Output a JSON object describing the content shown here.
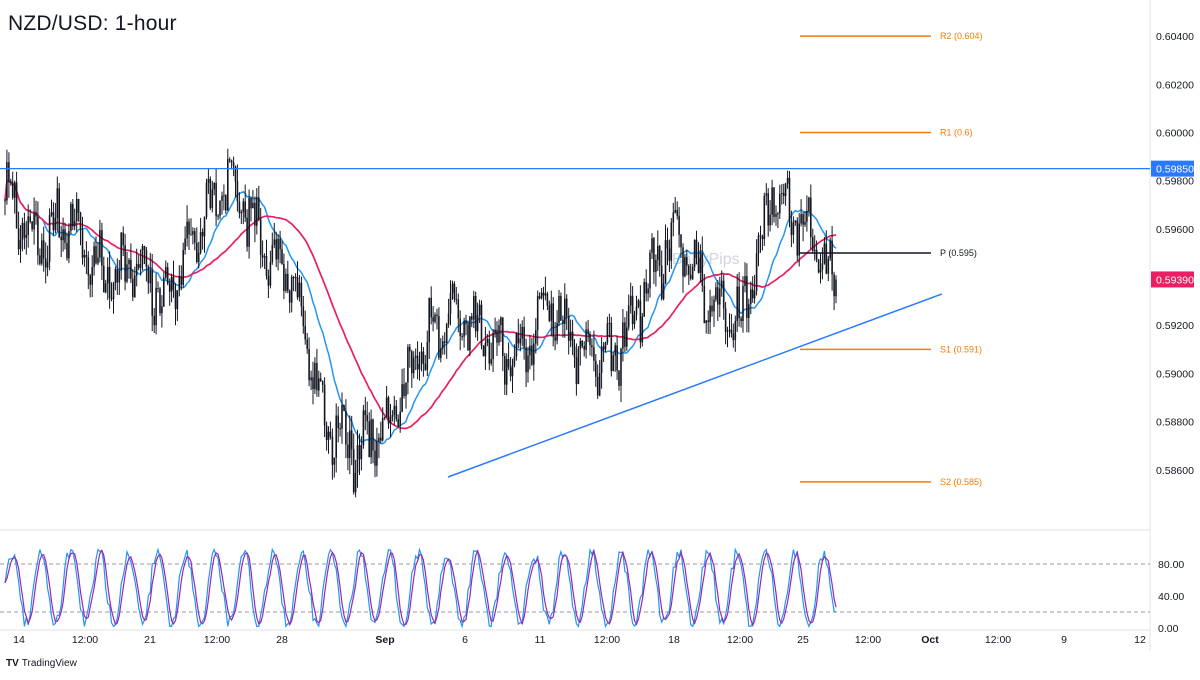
{
  "title": "NZD/USD: 1-hour",
  "watermark": "BabyPips",
  "footer": {
    "logo": "TV",
    "brand": "TradingView"
  },
  "colors": {
    "candle": "#131722",
    "ma_fast": "#2196f3",
    "ma_slow": "#e91e63",
    "resistance": "#2979ff",
    "trendline": "#2979ff",
    "pivot_resistance": "#f57c00",
    "pivot_support": "#f57c00",
    "pivot": "#131722",
    "stoch_k": "#2196f3",
    "stoch_d": "#9c27b0",
    "price_tag": "#e91e63"
  },
  "chart_data": {
    "type": "candlestick",
    "price_axis": {
      "ylim": [
        0.5835,
        0.6055
      ],
      "ticks": [
        "0.60400",
        "0.60200",
        "0.60000",
        "0.59800",
        "0.59600",
        "0.59200",
        "0.59000",
        "0.58800",
        "0.58600"
      ],
      "tick_values": [
        0.604,
        0.602,
        0.6,
        0.598,
        0.596,
        0.592,
        0.59,
        0.588,
        0.586
      ]
    },
    "time_axis": {
      "labels": [
        "14",
        "12:00",
        "21",
        "12:00",
        "28",
        "Sep",
        "6",
        "11",
        "12:00",
        "18",
        "12:00",
        "25",
        "12:00",
        "Oct",
        "12:00",
        "9",
        "12"
      ],
      "bold": [
        "Sep",
        "Oct"
      ]
    },
    "last_price_label": "0.59390",
    "resistance": {
      "value": 0.5985,
      "label": "0.59850"
    },
    "pivot_levels": [
      {
        "label": "R2 (0.604)",
        "value": 0.604
      },
      {
        "label": "R1 (0.6)",
        "value": 0.6
      },
      {
        "label": "P (0.595)",
        "value": 0.595
      },
      {
        "label": "S1 (0.591)",
        "value": 0.591
      },
      {
        "label": "S2 (0.585)",
        "value": 0.5855
      }
    ],
    "trendline": {
      "start_value": 0.5857,
      "end_value": 0.5933
    },
    "key_closes": [
      0.5975,
      0.5952,
      0.5965,
      0.594,
      0.5945,
      0.593,
      0.596,
      0.598,
      0.5955,
      0.594,
      0.588,
      0.5868,
      0.588,
      0.591,
      0.5925,
      0.5915,
      0.5905,
      0.593,
      0.591,
      0.5905,
      0.5935,
      0.596,
      0.593,
      0.592,
      0.5975,
      0.5962,
      0.5939
    ],
    "stochastic": {
      "ylim": [
        0,
        100
      ],
      "ticks": [
        "80.00",
        "40.00",
        "0.00"
      ],
      "tick_values": [
        80,
        40,
        0
      ],
      "levels": [
        80,
        20
      ]
    }
  }
}
